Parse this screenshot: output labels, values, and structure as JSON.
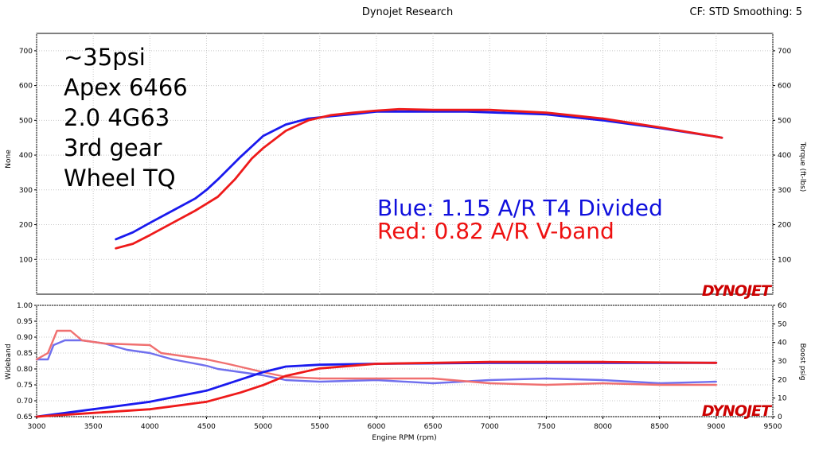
{
  "header": {
    "title": "Dynojet Research",
    "settings": "CF: STD Smoothing: 5"
  },
  "annotations": [
    "~35psi",
    "Apex 6466",
    "2.0 4G63",
    "3rd gear",
    "Wheel TQ"
  ],
  "legend": [
    {
      "text": "Blue: 1.15 A/R T4 Divided",
      "color": "#1010dd"
    },
    {
      "text": "Red:  0.82 A/R V-band",
      "color": "#ee1111"
    }
  ],
  "logo_text": "DYNOJET",
  "colors": {
    "blue": "#1a1aee",
    "red": "#ee1a1a",
    "blue_light": "#7070ee",
    "red_light": "#f07070"
  },
  "chart_data": [
    {
      "type": "line",
      "panel": "top",
      "xlabel": "Engine RPM  (rpm)",
      "ylabel_left": "None",
      "ylabel_right": "Torque  (ft-lbs)",
      "xlim": [
        3000,
        9500
      ],
      "ylim": [
        0,
        750
      ],
      "x_ticks": [
        3000,
        3500,
        4000,
        4500,
        5000,
        5500,
        6000,
        6500,
        7000,
        7500,
        8000,
        8500,
        9000,
        9500
      ],
      "y_ticks": [
        100,
        200,
        300,
        400,
        500,
        600,
        700
      ],
      "grid": true,
      "series": [
        {
          "name": "Blue: 1.15 A/R T4 Divided",
          "color": "#1a1aee",
          "x": [
            3700,
            3850,
            4000,
            4200,
            4400,
            4500,
            4600,
            4800,
            5000,
            5200,
            5400,
            5600,
            5800,
            6000,
            6200,
            6500,
            6800,
            7000,
            7500,
            8000,
            8500,
            9000,
            9050
          ],
          "y": [
            158,
            178,
            205,
            240,
            275,
            300,
            330,
            395,
            455,
            488,
            505,
            512,
            518,
            525,
            525,
            525,
            525,
            523,
            517,
            500,
            478,
            453,
            450
          ]
        },
        {
          "name": "Red:  0.82 A/R V-band",
          "color": "#ee1a1a",
          "x": [
            3700,
            3850,
            4000,
            4200,
            4400,
            4600,
            4750,
            4900,
            5000,
            5200,
            5400,
            5600,
            5800,
            6000,
            6200,
            6500,
            6800,
            7000,
            7500,
            8000,
            8500,
            9000,
            9050
          ],
          "y": [
            132,
            145,
            170,
            205,
            240,
            280,
            330,
            390,
            420,
            470,
            500,
            515,
            522,
            528,
            532,
            530,
            530,
            530,
            522,
            505,
            480,
            453,
            450
          ]
        }
      ]
    },
    {
      "type": "line",
      "panel": "bottom",
      "xlabel": "Engine RPM  (rpm)",
      "ylabel_left": "Wideband",
      "ylabel_right": "Boost  psig",
      "xlim": [
        3000,
        9500
      ],
      "ylim_left": [
        0.65,
        1.0
      ],
      "ylim_right": [
        0,
        60
      ],
      "y_ticks_left": [
        0.65,
        0.7,
        0.75,
        0.8,
        0.85,
        0.9,
        0.95,
        1.0
      ],
      "y_ticks_right": [
        0,
        10,
        20,
        30,
        40,
        50,
        60
      ],
      "grid": true,
      "series": [
        {
          "name": "Blue wideband",
          "color": "#7070ee",
          "axis": "left",
          "x": [
            3000,
            3100,
            3150,
            3250,
            3400,
            3600,
            3800,
            4000,
            4200,
            4500,
            4600,
            4800,
            5000,
            5200,
            5500,
            6000,
            6500,
            7000,
            7500,
            8000,
            8500,
            9000
          ],
          "y": [
            0.83,
            0.83,
            0.875,
            0.89,
            0.89,
            0.88,
            0.86,
            0.85,
            0.83,
            0.81,
            0.8,
            0.79,
            0.78,
            0.765,
            0.76,
            0.765,
            0.755,
            0.765,
            0.77,
            0.765,
            0.755,
            0.76
          ]
        },
        {
          "name": "Red wideband",
          "color": "#f07070",
          "axis": "left",
          "x": [
            3000,
            3100,
            3180,
            3300,
            3400,
            3600,
            4000,
            4100,
            4500,
            4700,
            5000,
            5200,
            5500,
            6000,
            6500,
            7000,
            7500,
            8000,
            8500,
            9000
          ],
          "y": [
            0.83,
            0.85,
            0.92,
            0.92,
            0.89,
            0.88,
            0.875,
            0.85,
            0.83,
            0.815,
            0.79,
            0.775,
            0.77,
            0.77,
            0.77,
            0.755,
            0.75,
            0.755,
            0.75,
            0.75
          ]
        },
        {
          "name": "Blue boost",
          "color": "#1a1aee",
          "axis": "right",
          "x": [
            3000,
            3500,
            4000,
            4500,
            4800,
            5000,
            5200,
            5500,
            6000,
            7000,
            8000,
            9000
          ],
          "y": [
            0,
            4,
            8,
            14,
            20,
            24,
            27,
            28,
            28.5,
            29,
            29,
            29
          ]
        },
        {
          "name": "Red boost",
          "color": "#ee1a1a",
          "axis": "right",
          "x": [
            3000,
            3500,
            4000,
            4500,
            4800,
            5000,
            5200,
            5500,
            6000,
            7000,
            8000,
            9000
          ],
          "y": [
            0,
            2,
            4,
            8,
            13,
            17,
            22,
            26,
            28.5,
            29.5,
            29.5,
            29
          ]
        }
      ]
    }
  ]
}
